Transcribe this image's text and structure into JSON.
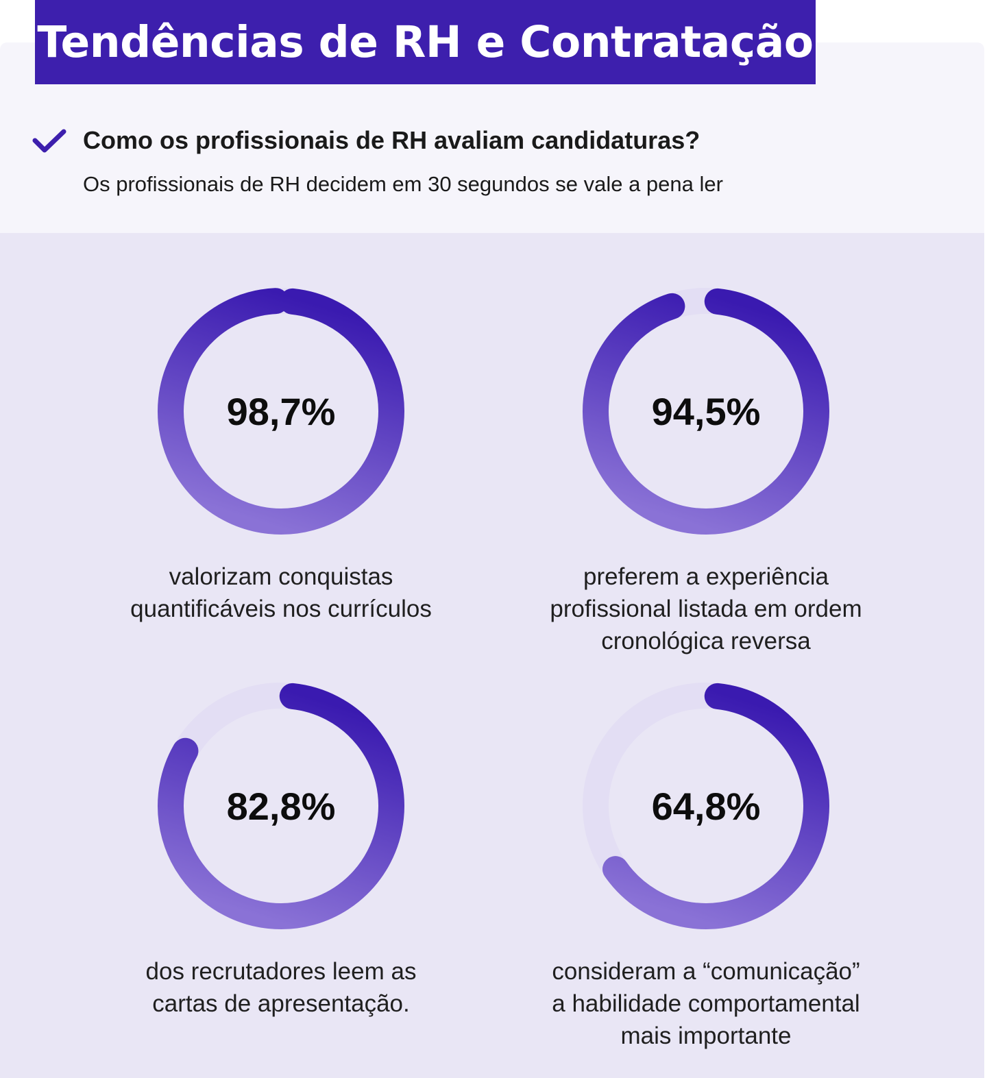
{
  "header": {
    "title": "Tendências de RH e Contratação",
    "question": "Como os profissionais de RH avaliam candidaturas?",
    "subtitle": "Os profissionais de RH decidem em 30 segundos se vale a pena ler",
    "check_icon": "checkmark-icon"
  },
  "colors": {
    "accent": "#3d1fad",
    "ring_dark": "#3a1ab0",
    "ring_light": "#8a72d6",
    "ring_track": "#e3def4"
  },
  "chart_data": [
    {
      "type": "pie",
      "value_percent": 98.7,
      "value_label": "98,7%",
      "label": "valorizam conquistas\nquantificáveis nos currículos"
    },
    {
      "type": "pie",
      "value_percent": 94.5,
      "value_label": "94,5%",
      "label": "preferem a experiência\nprofissional listada em ordem\ncronológica reversa"
    },
    {
      "type": "pie",
      "value_percent": 82.8,
      "value_label": "82,8%",
      "label": "dos recrutadores leem as\ncartas de apresentação."
    },
    {
      "type": "pie",
      "value_percent": 64.8,
      "value_label": "64,8%",
      "label": "consideram a “comunicação”\na habilidade comportamental\nmais importante"
    }
  ]
}
